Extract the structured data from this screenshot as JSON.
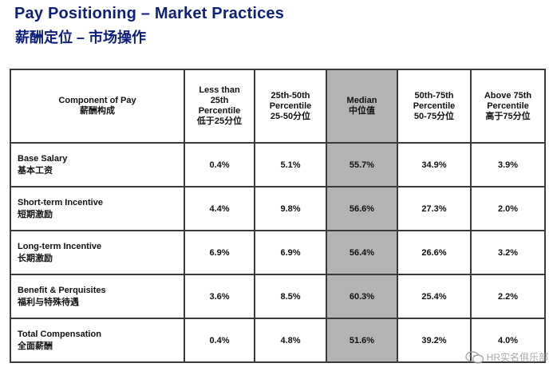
{
  "header": {
    "title": "Pay Positioning – Market Practices",
    "subtitle": "薪酬定位 – 市场操作"
  },
  "table": {
    "columns": [
      {
        "lines": [
          "Component of Pay",
          "薪酬构成"
        ]
      },
      {
        "lines": [
          "Less than",
          "25th",
          "Percentile",
          "低于25分位"
        ]
      },
      {
        "lines": [
          "25th-50th",
          "Percentile",
          "25-50分位"
        ]
      },
      {
        "lines": [
          "Median",
          "中位值"
        ]
      },
      {
        "lines": [
          "50th-75th",
          "Percentile",
          "50-75分位"
        ]
      },
      {
        "lines": [
          "Above 75th",
          "Percentile",
          "高于75分位"
        ]
      }
    ],
    "rows": [
      {
        "label_en": "Base Salary",
        "label_cn": "基本工资",
        "values": [
          "0.4%",
          "5.1%",
          "55.7%",
          "34.9%",
          "3.9%"
        ]
      },
      {
        "label_en": "Short-term Incentive",
        "label_cn": "短期激励",
        "values": [
          "4.4%",
          "9.8%",
          "56.6%",
          "27.3%",
          "2.0%"
        ]
      },
      {
        "label_en": "Long-term Incentive",
        "label_cn": "长期激励",
        "values": [
          "6.9%",
          "6.9%",
          "56.4%",
          "26.6%",
          "3.2%"
        ]
      },
      {
        "label_en": "Benefit & Perquisites",
        "label_cn": "福利与特殊待遇",
        "values": [
          "3.6%",
          "8.5%",
          "60.3%",
          "25.4%",
          "2.2%"
        ]
      },
      {
        "label_en": "Total Compensation",
        "label_cn": "全面薪酬",
        "values": [
          "0.4%",
          "4.8%",
          "51.6%",
          "39.2%",
          "4.0%"
        ]
      }
    ],
    "highlight_color": "#b3b3b3"
  },
  "watermark": {
    "text": "HR实名俱乐部",
    "icon": "wechat-icon"
  }
}
